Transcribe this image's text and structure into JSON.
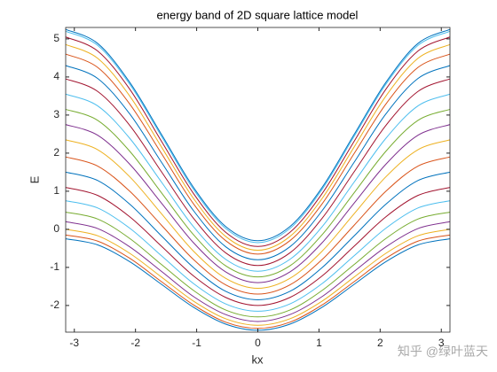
{
  "chart_data": {
    "type": "line",
    "title": "energy band of 2D square lattice model",
    "xlabel": "kx",
    "ylabel": "E",
    "watermark": "知乎 @绿叶蓝天",
    "x": [
      -3.1416,
      -2.618,
      -2.0944,
      -1.5708,
      -1.0472,
      -0.5236,
      0,
      0.5236,
      1.0472,
      1.5708,
      2.0944,
      2.618,
      3.1416
    ],
    "xlim": [
      -3.1416,
      3.1416
    ],
    "xticks": [
      -3,
      -2,
      -1,
      0,
      1,
      2,
      3
    ],
    "ylim": [
      -2.7,
      5.3
    ],
    "yticks": [
      -2,
      -1,
      0,
      1,
      2,
      3,
      4,
      5
    ],
    "series": [
      {
        "color": "#0072BD",
        "values": [
          5.25,
          4.88,
          3.86,
          2.48,
          1.09,
          0.07,
          -0.3,
          0.07,
          1.09,
          2.48,
          3.86,
          4.88,
          5.25
        ]
      },
      {
        "color": "#4DBEEE",
        "values": [
          5.2,
          4.83,
          3.81,
          2.43,
          1.04,
          0.02,
          -0.35,
          0.02,
          1.04,
          2.43,
          3.81,
          4.83,
          5.2
        ]
      },
      {
        "color": "#A2142F",
        "values": [
          5.05,
          4.68,
          3.68,
          2.3,
          0.93,
          -0.08,
          -0.45,
          -0.08,
          0.93,
          2.3,
          3.68,
          4.68,
          5.05
        ]
      },
      {
        "color": "#EDB120",
        "values": [
          4.85,
          4.49,
          3.5,
          2.15,
          0.8,
          -0.19,
          -0.55,
          -0.19,
          0.8,
          2.15,
          3.5,
          4.49,
          4.85
        ]
      },
      {
        "color": "#D95319",
        "values": [
          4.6,
          4.25,
          3.29,
          1.98,
          0.66,
          -0.3,
          -0.65,
          -0.3,
          0.66,
          1.98,
          3.29,
          4.25,
          4.6
        ]
      },
      {
        "color": "#0072BD",
        "values": [
          4.3,
          3.96,
          3.03,
          1.75,
          0.48,
          -0.46,
          -0.8,
          -0.46,
          0.48,
          1.75,
          3.03,
          3.96,
          4.3
        ]
      },
      {
        "color": "#A2142F",
        "values": [
          3.95,
          3.62,
          2.73,
          1.5,
          0.28,
          -0.62,
          -0.95,
          -0.62,
          0.28,
          1.5,
          2.73,
          3.62,
          3.95
        ]
      },
      {
        "color": "#4DBEEE",
        "values": [
          3.55,
          3.24,
          2.39,
          1.23,
          0.06,
          -0.79,
          -1.1,
          -0.79,
          0.06,
          1.23,
          2.39,
          3.24,
          3.55
        ]
      },
      {
        "color": "#77AC30",
        "values": [
          3.15,
          2.86,
          2.05,
          0.95,
          -0.15,
          -0.96,
          -1.25,
          -0.96,
          -0.15,
          0.95,
          2.05,
          2.86,
          3.15
        ]
      },
      {
        "color": "#7E2F8E",
        "values": [
          2.75,
          2.47,
          1.71,
          0.68,
          -0.36,
          -1.12,
          -1.4,
          -1.12,
          -0.36,
          0.68,
          1.71,
          2.47,
          2.75
        ]
      },
      {
        "color": "#EDB120",
        "values": [
          2.35,
          2.09,
          1.38,
          0.4,
          -0.58,
          -1.29,
          -1.55,
          -1.29,
          -0.58,
          0.4,
          1.38,
          2.09,
          2.35
        ]
      },
      {
        "color": "#D95319",
        "values": [
          1.9,
          1.66,
          1.0,
          0.1,
          -0.8,
          -1.46,
          -1.7,
          -1.46,
          -0.8,
          0.1,
          1.0,
          1.66,
          1.9
        ]
      },
      {
        "color": "#0072BD",
        "values": [
          1.5,
          1.28,
          0.66,
          -0.18,
          -1.01,
          -1.63,
          -1.85,
          -1.63,
          -1.01,
          -0.18,
          0.66,
          1.28,
          1.5
        ]
      },
      {
        "color": "#A2142F",
        "values": [
          1.1,
          0.89,
          0.33,
          -0.45,
          -1.23,
          -1.79,
          -2.0,
          -1.79,
          -1.23,
          -0.45,
          0.33,
          0.89,
          1.1
        ]
      },
      {
        "color": "#4DBEEE",
        "values": [
          0.75,
          0.56,
          0.03,
          -0.7,
          -1.43,
          -1.96,
          -2.15,
          -1.96,
          -1.43,
          -0.7,
          0.03,
          0.56,
          0.75
        ]
      },
      {
        "color": "#77AC30",
        "values": [
          0.45,
          0.27,
          -0.24,
          -0.93,
          -1.61,
          -2.12,
          -2.3,
          -2.12,
          -1.61,
          -0.93,
          -0.24,
          0.27,
          0.45
        ]
      },
      {
        "color": "#7E2F8E",
        "values": [
          0.2,
          0.02,
          -0.46,
          -1.11,
          -1.77,
          -2.24,
          -2.42,
          -2.24,
          -1.77,
          -1.11,
          -0.46,
          0.02,
          0.2
        ]
      },
      {
        "color": "#EDB120",
        "values": [
          0.0,
          -0.17,
          -0.63,
          -1.26,
          -1.89,
          -2.35,
          -2.52,
          -2.35,
          -1.89,
          -1.26,
          -0.63,
          -0.17,
          0.0
        ]
      },
      {
        "color": "#D95319",
        "values": [
          -0.15,
          -0.31,
          -0.76,
          -1.38,
          -1.99,
          -2.44,
          -2.6,
          -2.44,
          -1.99,
          -1.38,
          -0.76,
          -0.31,
          -0.15
        ]
      },
      {
        "color": "#0072BD",
        "values": [
          -0.25,
          -0.41,
          -0.85,
          -1.45,
          -2.05,
          -2.49,
          -2.65,
          -2.49,
          -2.05,
          -1.45,
          -0.85,
          -0.41,
          -0.25
        ]
      }
    ]
  }
}
